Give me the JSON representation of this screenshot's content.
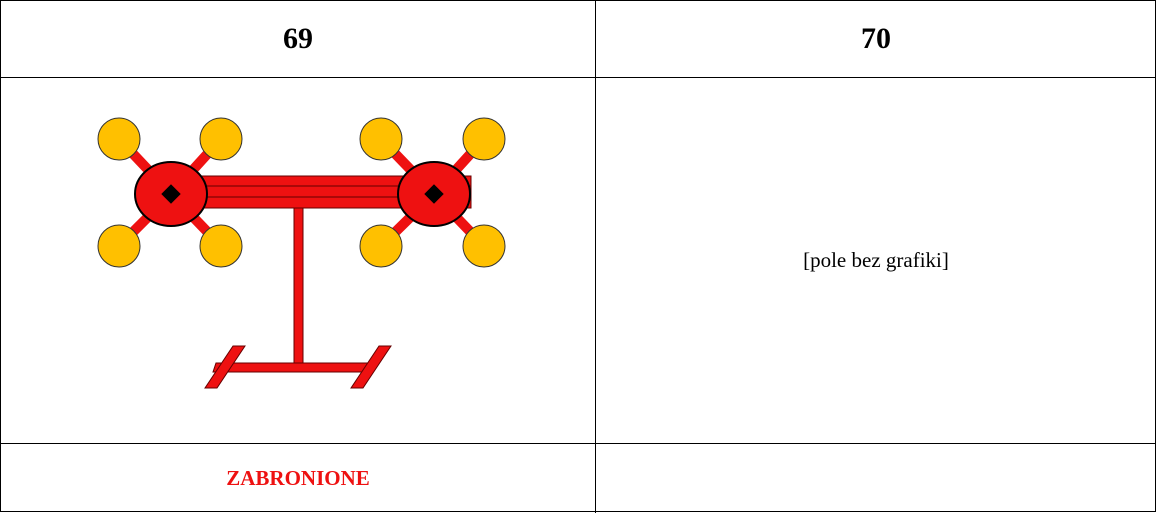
{
  "table": {
    "header": [
      "69",
      "70"
    ],
    "body": {
      "right_text": "[pole bez grafiki]"
    },
    "footer": {
      "left_text": "ZABRONIONE"
    }
  }
}
